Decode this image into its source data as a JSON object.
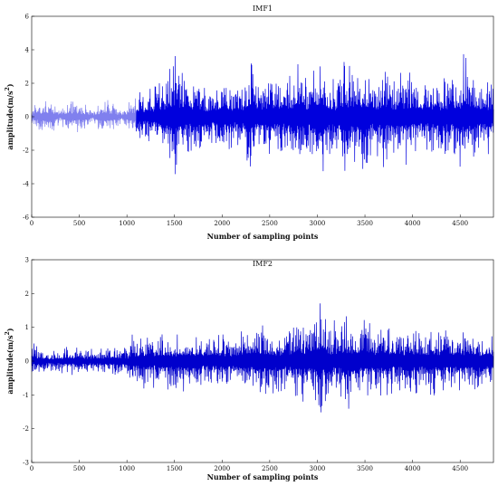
{
  "chart_data": [
    {
      "type": "line",
      "title": "IMF1",
      "xlabel": "Number of sampling points",
      "ylabel": "amplitude(m/s",
      "ylabel_superscript": "2",
      "ylabel_suffix": ")",
      "xlim": [
        0,
        4850
      ],
      "ylim": [
        -6,
        6
      ],
      "x_ticks": [
        0,
        500,
        1000,
        1500,
        2000,
        2500,
        3000,
        3500,
        4000,
        4500
      ],
      "y_ticks": [
        -6,
        -4,
        -2,
        0,
        2,
        4,
        6
      ],
      "grid": false,
      "series": [
        {
          "color_light": "#8080ee",
          "color_dark": "#0000dd",
          "envelope_x": [
            0,
            50,
            150,
            250,
            300,
            350,
            450,
            550,
            650,
            700,
            780,
            850,
            950,
            1050,
            1080,
            1150,
            1200,
            1300,
            1400,
            1500,
            1600,
            1700,
            1800,
            1900,
            2000,
            2100,
            2200,
            2300,
            2400,
            2500,
            2600,
            2700,
            2800,
            2900,
            3000,
            3050,
            3080,
            3100,
            3200,
            3300,
            3400,
            3500,
            3600,
            3700,
            3800,
            3900,
            4000,
            4100,
            4200,
            4300,
            4400,
            4500,
            4550,
            4600,
            4700,
            4800,
            4850
          ],
          "envelope_amplitude": [
            0.4,
            1.0,
            1.1,
            0.9,
            0.3,
            1.0,
            1.1,
            0.8,
            0.3,
            1.0,
            1.2,
            1.0,
            0.4,
            1.2,
            1.4,
            1.8,
            1.6,
            2.0,
            2.6,
            4.0,
            2.4,
            3.0,
            2.2,
            1.8,
            2.6,
            2.0,
            2.2,
            3.4,
            2.0,
            3.0,
            2.2,
            2.8,
            3.4,
            2.8,
            3.8,
            4.8,
            3.4,
            2.6,
            2.4,
            3.8,
            3.0,
            3.4,
            2.6,
            3.2,
            2.4,
            3.0,
            2.8,
            2.2,
            2.8,
            2.4,
            2.6,
            3.0,
            4.4,
            3.0,
            2.2,
            2.6,
            2.4
          ],
          "light_segment_until_x": 1100
        }
      ]
    },
    {
      "type": "line",
      "title": "IMF2",
      "xlabel": "Number of sampling points",
      "ylabel": "amplitude(m/s",
      "ylabel_superscript": "2",
      "ylabel_suffix": ")",
      "xlim": [
        0,
        4850
      ],
      "ylim": [
        -3,
        3
      ],
      "x_ticks": [
        0,
        500,
        1000,
        1500,
        2000,
        2500,
        3000,
        3500,
        4000,
        4500
      ],
      "y_ticks": [
        -3,
        -2,
        -1,
        0,
        1,
        2,
        3
      ],
      "grid": false,
      "series": [
        {
          "color_light": "#2a2ad8",
          "color_dark": "#0000cc",
          "envelope_x": [
            0,
            100,
            200,
            300,
            400,
            500,
            600,
            700,
            800,
            900,
            1000,
            1050,
            1100,
            1200,
            1300,
            1400,
            1500,
            1600,
            1700,
            1800,
            1900,
            2000,
            2100,
            2200,
            2300,
            2400,
            2500,
            2600,
            2700,
            2800,
            2900,
            3000,
            3030,
            3060,
            3100,
            3200,
            3300,
            3400,
            3500,
            3600,
            3700,
            3800,
            3900,
            4000,
            4100,
            4200,
            4300,
            4400,
            4500,
            4600,
            4700,
            4800,
            4850
          ],
          "envelope_amplitude": [
            0.6,
            0.4,
            0.3,
            0.35,
            0.5,
            0.45,
            0.4,
            0.35,
            0.5,
            0.45,
            0.4,
            0.9,
            0.8,
            0.9,
            0.8,
            1.0,
            0.9,
            1.0,
            0.9,
            0.8,
            0.9,
            1.0,
            0.8,
            0.9,
            1.0,
            1.2,
            1.0,
            1.1,
            0.9,
            1.3,
            1.2,
            1.5,
            2.4,
            1.6,
            1.3,
            1.2,
            1.6,
            1.2,
            1.3,
            1.1,
            1.2,
            1.0,
            1.1,
            1.2,
            1.0,
            1.1,
            1.1,
            1.0,
            1.0,
            1.1,
            1.0,
            0.9,
            0.9
          ],
          "light_segment_until_x": 0
        }
      ]
    }
  ]
}
